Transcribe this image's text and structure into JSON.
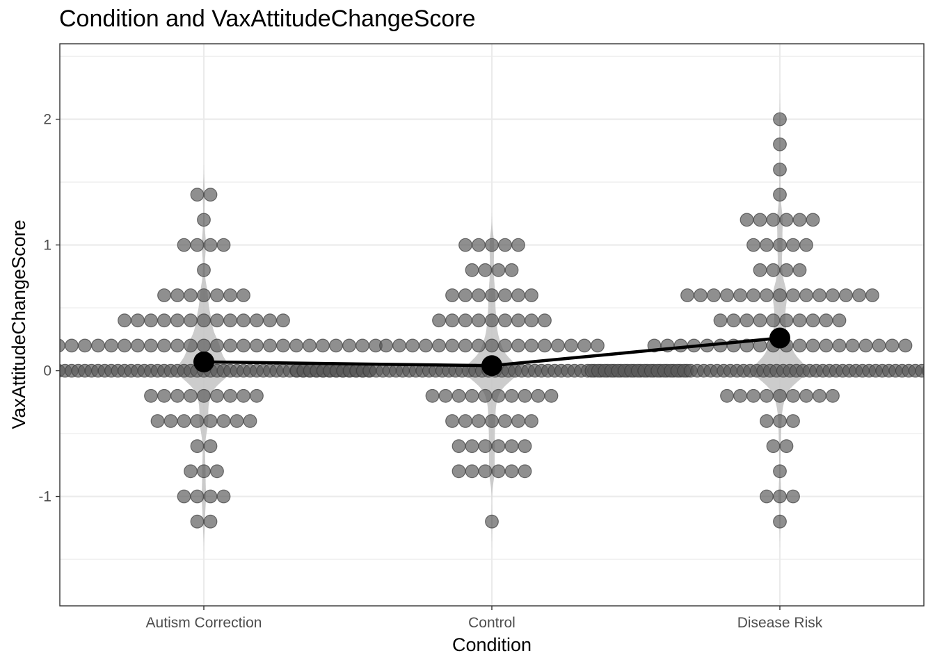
{
  "chart_data": {
    "type": "dotplot",
    "title": "Condition and VaxAttitudeChangeScore",
    "xlabel": "Condition",
    "ylabel": "VaxAttitudeChangeScore",
    "categories": [
      "Autism Correction",
      "Control",
      "Disease Risk"
    ],
    "ylim": [
      -1.87,
      2.6
    ],
    "yticks": [
      -1,
      0,
      1,
      2
    ],
    "grid": true,
    "colors": {
      "dots": "#5a5a5a",
      "violin": "#c7c7c7",
      "mean": "#000000",
      "grid": "#ebebeb",
      "panel_border": "#333333"
    },
    "dot_counts": [
      {
        "category": "Autism Correction",
        "counts": [
          {
            "y": 1.4,
            "n": 2
          },
          {
            "y": 1.2,
            "n": 1
          },
          {
            "y": 1.0,
            "n": 4
          },
          {
            "y": 0.8,
            "n": 1
          },
          {
            "y": 0.6,
            "n": 7
          },
          {
            "y": 0.4,
            "n": 13
          },
          {
            "y": 0.2,
            "n": 27
          },
          {
            "y": 0.0,
            "n": 51
          },
          {
            "y": -0.2,
            "n": 9
          },
          {
            "y": -0.4,
            "n": 8
          },
          {
            "y": -0.6,
            "n": 2
          },
          {
            "y": -0.8,
            "n": 3
          },
          {
            "y": -1.0,
            "n": 4
          },
          {
            "y": -1.2,
            "n": 2
          }
        ]
      },
      {
        "category": "Control",
        "counts": [
          {
            "y": 1.0,
            "n": 5
          },
          {
            "y": 0.8,
            "n": 4
          },
          {
            "y": 0.6,
            "n": 7
          },
          {
            "y": 0.4,
            "n": 9
          },
          {
            "y": 0.2,
            "n": 17
          },
          {
            "y": 0.0,
            "n": 60
          },
          {
            "y": -0.2,
            "n": 10
          },
          {
            "y": -0.4,
            "n": 7
          },
          {
            "y": -0.6,
            "n": 6
          },
          {
            "y": -0.8,
            "n": 6
          },
          {
            "y": -1.2,
            "n": 1
          }
        ]
      },
      {
        "category": "Disease Risk",
        "counts": [
          {
            "y": 2.0,
            "n": 1
          },
          {
            "y": 1.8,
            "n": 1
          },
          {
            "y": 1.6,
            "n": 1
          },
          {
            "y": 1.4,
            "n": 1
          },
          {
            "y": 1.2,
            "n": 6
          },
          {
            "y": 1.0,
            "n": 5
          },
          {
            "y": 0.8,
            "n": 4
          },
          {
            "y": 0.6,
            "n": 15
          },
          {
            "y": 0.4,
            "n": 10
          },
          {
            "y": 0.2,
            "n": 20
          },
          {
            "y": 0.0,
            "n": 58
          },
          {
            "y": -0.2,
            "n": 9
          },
          {
            "y": -0.4,
            "n": 3
          },
          {
            "y": -0.6,
            "n": 2
          },
          {
            "y": -0.8,
            "n": 1
          },
          {
            "y": -1.0,
            "n": 3
          },
          {
            "y": -1.2,
            "n": 1
          }
        ]
      }
    ],
    "means": [
      {
        "category": "Autism Correction",
        "y": 0.07
      },
      {
        "category": "Control",
        "y": 0.04
      },
      {
        "category": "Disease Risk",
        "y": 0.26
      }
    ]
  }
}
